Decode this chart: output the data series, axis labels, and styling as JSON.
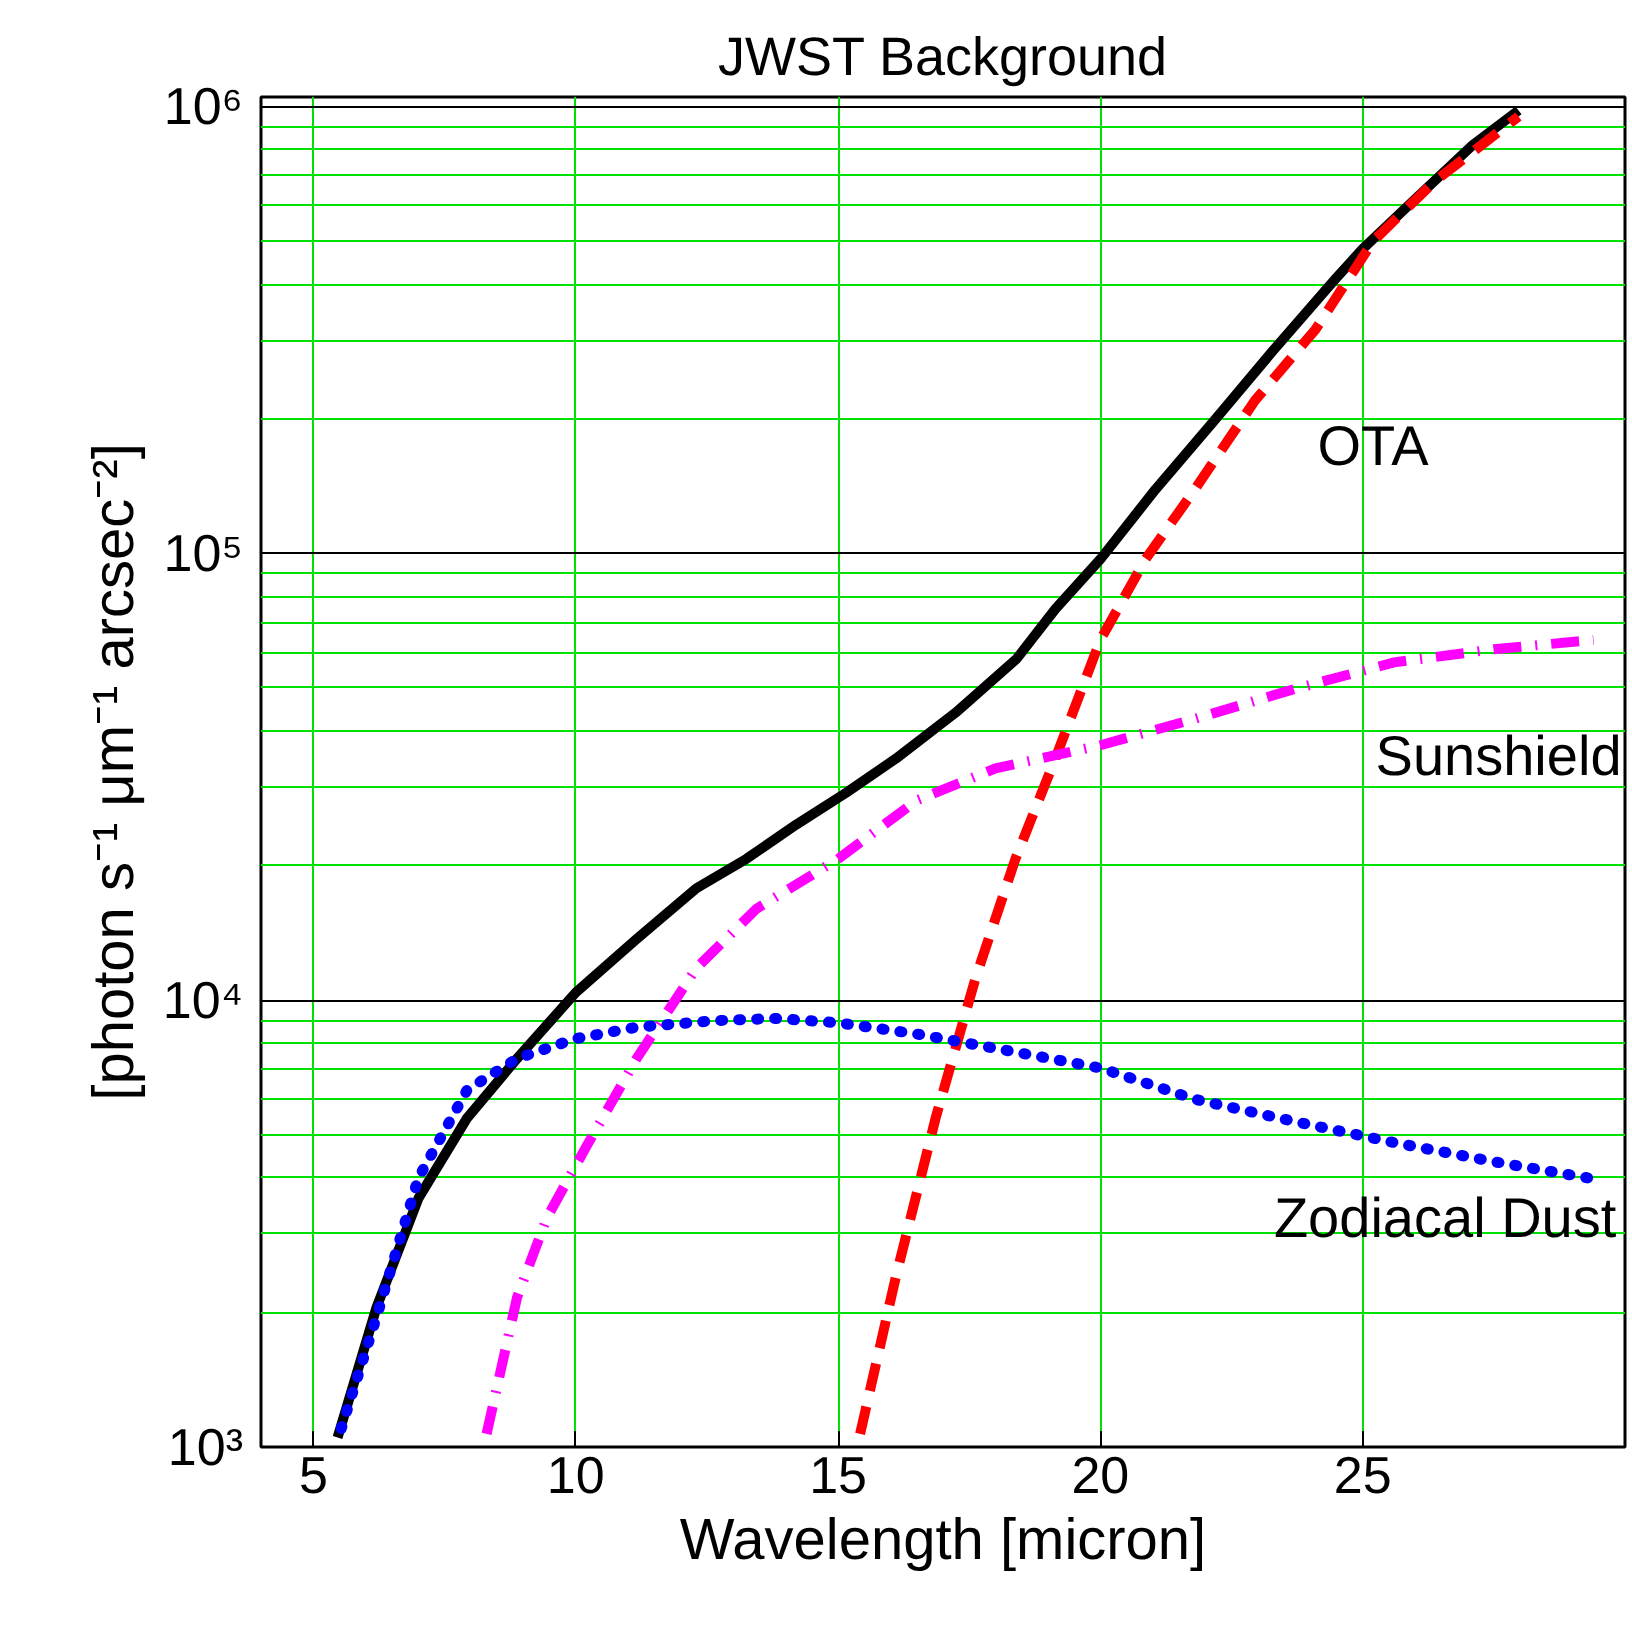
{
  "chart_data": {
    "type": "line",
    "title": "JWST Background",
    "xlabel": "Wavelength [micron]",
    "ylabel": "[photon s⁻¹ μm⁻¹ arcsec⁻²]",
    "log": "y",
    "grid": true,
    "xlim": [
      4,
      30
    ],
    "xticks": [
      5,
      10,
      15,
      20,
      25
    ],
    "ylim": [
      1000,
      1050000
    ],
    "yticks": [
      {
        "value": 1000,
        "label": "10³"
      },
      {
        "value": 10000,
        "label": "10⁴"
      },
      {
        "value": 100000,
        "label": "10⁵"
      },
      {
        "value": 1000000,
        "label": "10⁶"
      }
    ],
    "series": [
      {
        "color": "#000000",
        "line_style": "solid",
        "x": [
          5.46,
          6.2,
          7.0,
          7.93,
          8.88,
          10,
          11.16,
          12.3,
          13.25,
          14.2,
          15.15,
          16.1,
          17.24,
          18.4,
          19.14,
          20,
          21.05,
          22.2,
          23.3,
          24.47,
          25,
          26,
          27.1,
          27.97
        ],
        "values": [
          1050,
          2050,
          3600,
          5450,
          7400,
          10400,
          13700,
          17800,
          20700,
          24700,
          29100,
          34700,
          44000,
          58000,
          75000,
          97000,
          139000,
          200000,
          285000,
          410000,
          480000,
          620000,
          820000,
          980000
        ]
      },
      {
        "name": "OTA",
        "color": "#ff0000",
        "line_style": "dashed",
        "x": [
          15.42,
          16.1,
          16.86,
          17.62,
          18.38,
          19.14,
          20,
          20.86,
          21.8,
          22.95,
          24.1,
          25.2,
          26.37,
          27.97
        ],
        "values": [
          1070,
          2400,
          5450,
          11200,
          20700,
          34700,
          64000,
          97000,
          139000,
          220000,
          317000,
          500000,
          680000,
          950000
        ]
      },
      {
        "name": "Sunshield",
        "color": "#ff00ff",
        "line_style": "dashdot",
        "x": [
          8.3,
          8.88,
          9.45,
          10.2,
          11.16,
          12.3,
          13.44,
          15,
          16.5,
          18,
          20,
          21.8,
          23.7,
          25.6,
          27.5,
          29.4
        ],
        "values": [
          1070,
          2160,
          3260,
          4700,
          7400,
          11800,
          16000,
          20700,
          28000,
          33000,
          37200,
          42600,
          49700,
          57000,
          61000,
          64000
        ]
      },
      {
        "name": "Zodiacal Dust",
        "color": "#0000ff",
        "line_style": "dotted",
        "x": [
          5.53,
          6.2,
          7,
          7.93,
          8.88,
          10,
          11.16,
          12.68,
          13.82,
          15,
          16.5,
          18,
          20,
          21.8,
          23.7,
          25.6,
          27.5,
          29.3
        ],
        "values": [
          1100,
          1950,
          4000,
          6300,
          7400,
          8200,
          8700,
          9000,
          9100,
          8900,
          8400,
          7800,
          7050,
          6000,
          5350,
          4800,
          4350,
          4000
        ]
      }
    ]
  }
}
